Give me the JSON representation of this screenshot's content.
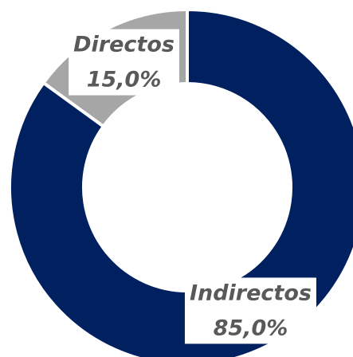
{
  "chart_data": {
    "type": "pie",
    "donut": true,
    "categories": [
      "Indirectos",
      "Directos"
    ],
    "values": [
      85,
      15
    ],
    "value_labels": [
      "85,0%",
      "15,0%"
    ],
    "colors": [
      "#002060",
      "#a6a6a6"
    ]
  }
}
